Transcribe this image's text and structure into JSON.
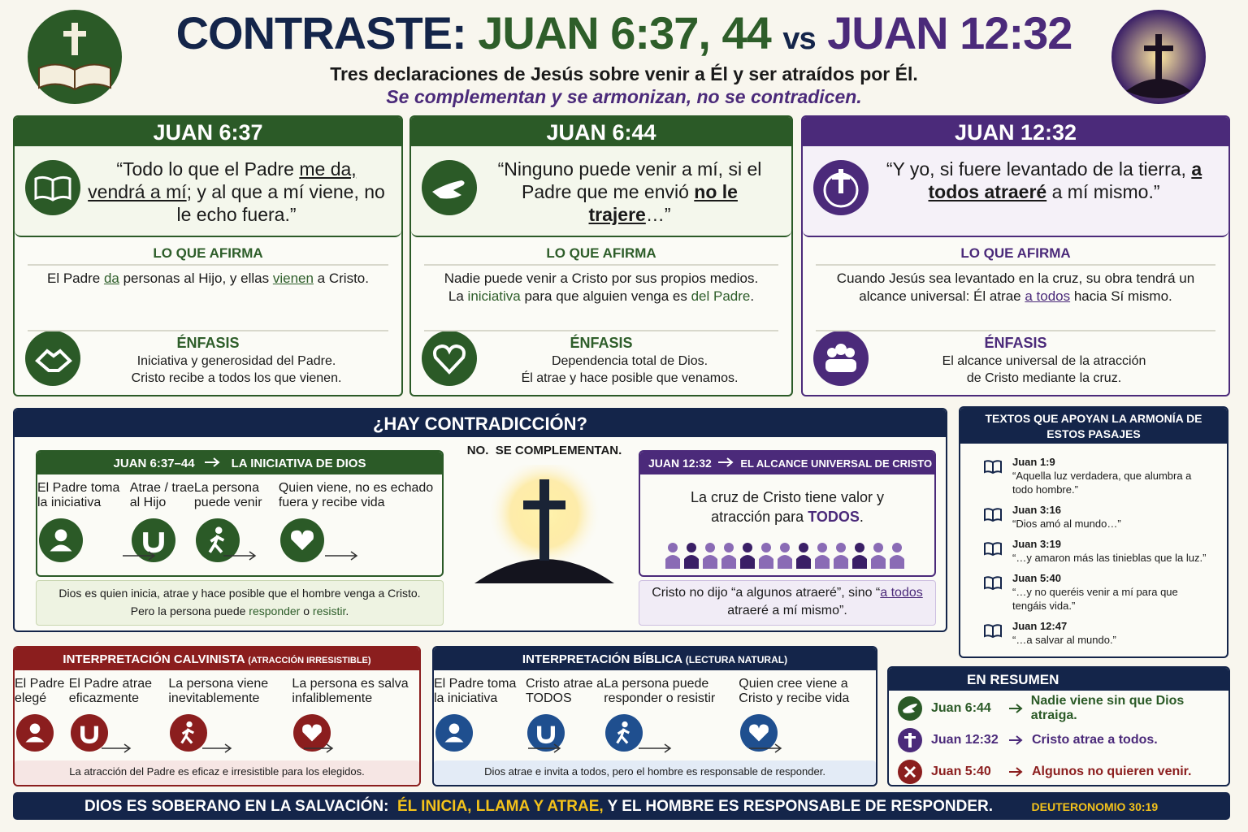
{
  "header": {
    "title_a": "CONTRASTE:",
    "title_b": "JUAN 6:37, 44",
    "title_c": "vs",
    "title_d": "JUAN 12:32",
    "subtitle": "Tres declaraciones de Jesús sobre venir a Él y ser atraídos por Él.",
    "tagline": "Se complementan y se armonizan, no se contradicen."
  },
  "cards": [
    {
      "title": "JUAN 6:37",
      "quote": [
        "“Todo lo que el Padre ",
        "me da,",
        " ",
        "vendrá a mí",
        "; y al que a mí viene, no le echo fuera.”"
      ],
      "affirm_heading": "LO QUE AFIRMA",
      "affirm": [
        "El Padre ",
        "da",
        " personas al Hijo, y ellas ",
        "vienen",
        " a Cristo."
      ],
      "emphasis_heading": "ÉNFASIS",
      "emphasis": [
        "Iniciativa y generosidad del Padre.",
        "Cristo recibe a todos los que vienen."
      ]
    },
    {
      "title": "JUAN 6:44",
      "quote": [
        "“Ninguno puede venir a mí, si el Padre que me envió ",
        "no le trajere",
        "…”"
      ],
      "affirm_heading": "LO QUE AFIRMA",
      "affirm": [
        "Nadie puede venir a Cristo por sus propios medios. La ",
        "iniciativa",
        " para que alguien venga es ",
        "del Padre",
        "."
      ],
      "emphasis_heading": "ÉNFASIS",
      "emphasis": [
        "Dependencia total de Dios.",
        "Él atrae y hace posible que venamos."
      ]
    },
    {
      "title": "JUAN 12:32",
      "quote": [
        "“Y yo, si fuere levantado de la tierra, ",
        "a todos atraeré",
        " a mí mismo.”"
      ],
      "affirm_heading": "LO QUE AFIRMA",
      "affirm": [
        "Cuando Jesús sea levantado en la cruz, su obra tendrá un alcance universal: Él atrae ",
        "a todos",
        " hacia Sí mismo."
      ],
      "emphasis_heading": "ÉNFASIS",
      "emphasis": [
        "El alcance universal de la atracción",
        "de Cristo mediante la cruz."
      ]
    }
  ],
  "contradiction": {
    "title": "¿HAY CONTRADICCIÓN?",
    "left_ref": "JUAN 6:37–44",
    "left_label": "LA INICIATIVA DE DIOS",
    "left_steps": [
      "El Padre toma la iniciativa",
      "Atrae / trae al Hijo",
      "La persona puede venir",
      "Quien viene, no es echado fuera y recibe vida"
    ],
    "left_note": [
      "Dios es quien inicia, atrae y hace posible que el hombre venga a Cristo.",
      "Pero la persona puede ",
      "responder",
      " o ",
      "resistir",
      "."
    ],
    "center": "NO.  SE COMPLEMENTAN.",
    "right_ref": "JUAN 12:32",
    "right_label": "EL ALCANCE UNIVERSAL DE CRISTO",
    "right_text": [
      "La cruz de Cristo tiene valor y atracción para ",
      "TODOS",
      "."
    ],
    "right_note": [
      "Cristo no dijo “a algunos atraeré”, sino “",
      "a todos",
      " atraeré a mí mismo”."
    ]
  },
  "texts": {
    "title": "TEXTOS QUE APOYAN LA ARMONÍA DE ESTOS PASAJES",
    "items": [
      {
        "ref": "Juan 1:9",
        "text": "“Aquella luz verdadera, que alumbra a todo hombre.”"
      },
      {
        "ref": "Juan 3:16",
        "text": "“Dios amó al mundo…”"
      },
      {
        "ref": "Juan 3:19",
        "text": "“…y amaron más las tinieblas que la luz.”"
      },
      {
        "ref": "Juan 5:40",
        "text": "“…y no queréis venir a mí para que tengáis vida.”"
      },
      {
        "ref": "Juan 12:47",
        "text": "“…a salvar al mundo.”"
      }
    ]
  },
  "calvinist": {
    "title": "INTERPRETACIÓN CALVINISTA",
    "subtitle": "(ATRACCIÓN IRRESISTIBLE)",
    "steps": [
      "El Padre elegé",
      "El Padre atrae eficazmente",
      "La persona viene inevitablemente",
      "La persona es salva infaliblemente"
    ],
    "note": "La atracción del Padre es eficaz e irresistible para los elegidos."
  },
  "biblical": {
    "title": "INTERPRETACIÓN BÍBLICA",
    "subtitle": "(LECTURA NATURAL)",
    "steps": [
      "El Padre toma la iniciativa",
      "Cristo atrae a TODOS",
      "La persona puede responder o resistir",
      "Quien cree viene a Cristo y recibe vida"
    ],
    "note": "Dios atrae e invita a todos, pero el hombre es responsable de responder."
  },
  "summary": {
    "title": "EN RESUMEN",
    "rows": [
      {
        "ref": "Juan 6:44",
        "text": "Nadie viene sin que Dios atraiga."
      },
      {
        "ref": "Juan 12:32",
        "text": "Cristo atrae a todos."
      },
      {
        "ref": "Juan 5:40",
        "text": "Algunos no quieren venir."
      }
    ]
  },
  "footer": {
    "lead": "DIOS ES SOBERANO EN LA SALVACIÓN:",
    "highlight": "ÉL INICIA, LLAMA Y ATRAE,",
    "rest": "Y EL HOMBRE ES RESPONSABLE DE RESPONDER.",
    "reference": "DEUTERONOMIO 30:19"
  }
}
